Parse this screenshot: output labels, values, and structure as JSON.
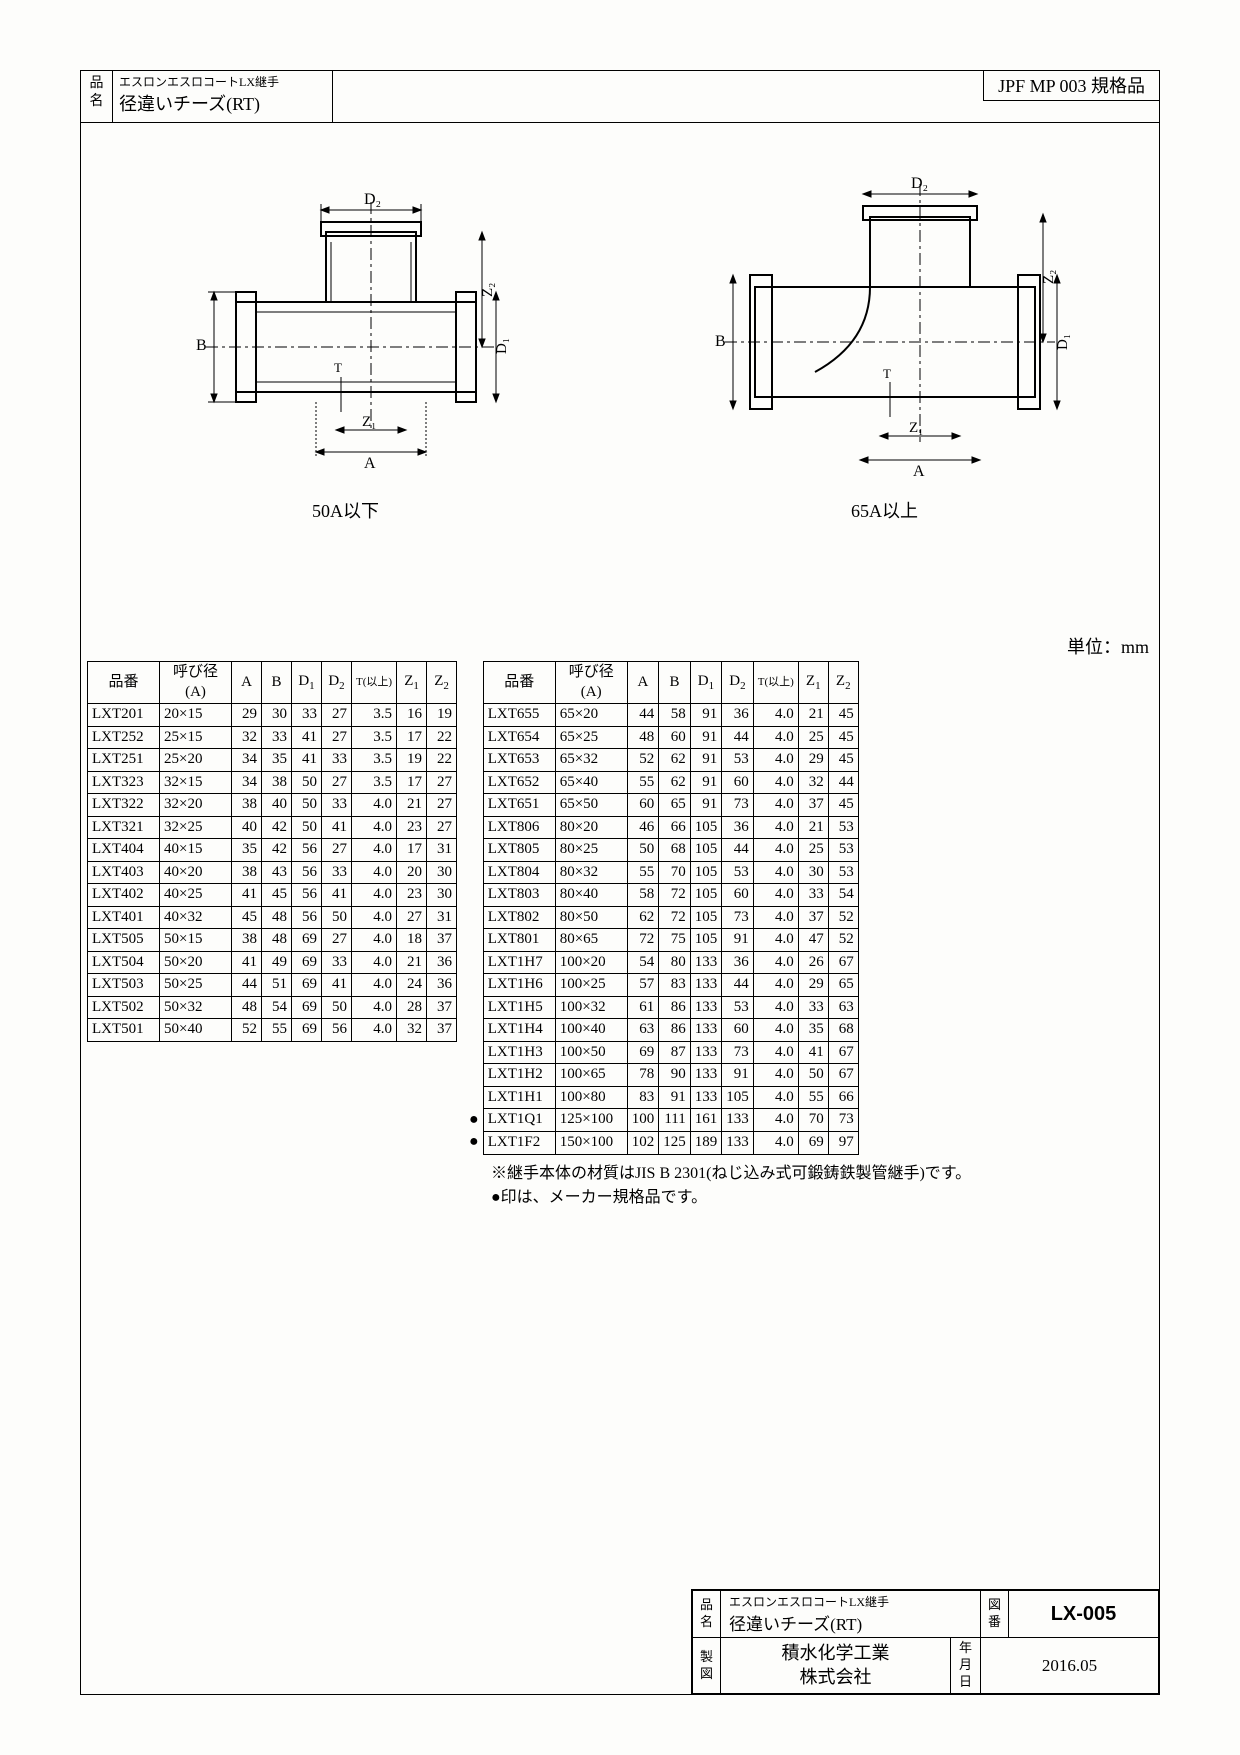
{
  "header": {
    "name_label_1": "品",
    "name_label_2": "名",
    "series": "エスロンエスロコートLX継手",
    "product_name": "径違いチーズ(RT)",
    "spec": "JPF MP 003 規格品"
  },
  "diagram": {
    "left_caption": "50A以下",
    "right_caption": "65A以上",
    "dim_A": "A",
    "dim_B": "B",
    "dim_D1": "D₁",
    "dim_D2": "D₂",
    "dim_Z1": "Z₁",
    "dim_Z2": "Z₂",
    "dim_T": "T"
  },
  "unit_label": "単位：mm",
  "table_headers": {
    "part": "品番",
    "nominal": "呼び径\n(A)",
    "A": "A",
    "B": "B",
    "D1": "D",
    "D1s": "1",
    "D2": "D",
    "D2s": "2",
    "T": "T(以上)",
    "Z1": "Z",
    "Z1s": "1",
    "Z2": "Z",
    "Z2s": "2"
  },
  "left_rows": [
    [
      "LXT201",
      "20×15",
      "29",
      "30",
      "33",
      "27",
      "3.5",
      "16",
      "19"
    ],
    [
      "LXT252",
      "25×15",
      "32",
      "33",
      "41",
      "27",
      "3.5",
      "17",
      "22"
    ],
    [
      "LXT251",
      "25×20",
      "34",
      "35",
      "41",
      "33",
      "3.5",
      "19",
      "22"
    ],
    [
      "LXT323",
      "32×15",
      "34",
      "38",
      "50",
      "27",
      "3.5",
      "17",
      "27"
    ],
    [
      "LXT322",
      "32×20",
      "38",
      "40",
      "50",
      "33",
      "4.0",
      "21",
      "27"
    ],
    [
      "LXT321",
      "32×25",
      "40",
      "42",
      "50",
      "41",
      "4.0",
      "23",
      "27"
    ],
    [
      "LXT404",
      "40×15",
      "35",
      "42",
      "56",
      "27",
      "4.0",
      "17",
      "31"
    ],
    [
      "LXT403",
      "40×20",
      "38",
      "43",
      "56",
      "33",
      "4.0",
      "20",
      "30"
    ],
    [
      "LXT402",
      "40×25",
      "41",
      "45",
      "56",
      "41",
      "4.0",
      "23",
      "30"
    ],
    [
      "LXT401",
      "40×32",
      "45",
      "48",
      "56",
      "50",
      "4.0",
      "27",
      "31"
    ],
    [
      "LXT505",
      "50×15",
      "38",
      "48",
      "69",
      "27",
      "4.0",
      "18",
      "37"
    ],
    [
      "LXT504",
      "50×20",
      "41",
      "49",
      "69",
      "33",
      "4.0",
      "21",
      "36"
    ],
    [
      "LXT503",
      "50×25",
      "44",
      "51",
      "69",
      "41",
      "4.0",
      "24",
      "36"
    ],
    [
      "LXT502",
      "50×32",
      "48",
      "54",
      "69",
      "50",
      "4.0",
      "28",
      "37"
    ],
    [
      "LXT501",
      "50×40",
      "52",
      "55",
      "69",
      "56",
      "4.0",
      "32",
      "37"
    ]
  ],
  "right_rows": [
    [
      "",
      "LXT655",
      "65×20",
      "44",
      "58",
      "91",
      "36",
      "4.0",
      "21",
      "45"
    ],
    [
      "",
      "LXT654",
      "65×25",
      "48",
      "60",
      "91",
      "44",
      "4.0",
      "25",
      "45"
    ],
    [
      "",
      "LXT653",
      "65×32",
      "52",
      "62",
      "91",
      "53",
      "4.0",
      "29",
      "45"
    ],
    [
      "",
      "LXT652",
      "65×40",
      "55",
      "62",
      "91",
      "60",
      "4.0",
      "32",
      "44"
    ],
    [
      "",
      "LXT651",
      "65×50",
      "60",
      "65",
      "91",
      "73",
      "4.0",
      "37",
      "45"
    ],
    [
      "",
      "LXT806",
      "80×20",
      "46",
      "66",
      "105",
      "36",
      "4.0",
      "21",
      "53"
    ],
    [
      "",
      "LXT805",
      "80×25",
      "50",
      "68",
      "105",
      "44",
      "4.0",
      "25",
      "53"
    ],
    [
      "",
      "LXT804",
      "80×32",
      "55",
      "70",
      "105",
      "53",
      "4.0",
      "30",
      "53"
    ],
    [
      "",
      "LXT803",
      "80×40",
      "58",
      "72",
      "105",
      "60",
      "4.0",
      "33",
      "54"
    ],
    [
      "",
      "LXT802",
      "80×50",
      "62",
      "72",
      "105",
      "73",
      "4.0",
      "37",
      "52"
    ],
    [
      "",
      "LXT801",
      "80×65",
      "72",
      "75",
      "105",
      "91",
      "4.0",
      "47",
      "52"
    ],
    [
      "",
      "LXT1H7",
      "100×20",
      "54",
      "80",
      "133",
      "36",
      "4.0",
      "26",
      "67"
    ],
    [
      "",
      "LXT1H6",
      "100×25",
      "57",
      "83",
      "133",
      "44",
      "4.0",
      "29",
      "65"
    ],
    [
      "",
      "LXT1H5",
      "100×32",
      "61",
      "86",
      "133",
      "53",
      "4.0",
      "33",
      "63"
    ],
    [
      "",
      "LXT1H4",
      "100×40",
      "63",
      "86",
      "133",
      "60",
      "4.0",
      "35",
      "68"
    ],
    [
      "",
      "LXT1H3",
      "100×50",
      "69",
      "87",
      "133",
      "73",
      "4.0",
      "41",
      "67"
    ],
    [
      "",
      "LXT1H2",
      "100×65",
      "78",
      "90",
      "133",
      "91",
      "4.0",
      "50",
      "67"
    ],
    [
      "",
      "LXT1H1",
      "100×80",
      "83",
      "91",
      "133",
      "105",
      "4.0",
      "55",
      "66"
    ],
    [
      "●",
      "LXT1Q1",
      "125×100",
      "100",
      "111",
      "161",
      "133",
      "4.0",
      "70",
      "73"
    ],
    [
      "●",
      "LXT1F2",
      "150×100",
      "102",
      "125",
      "189",
      "133",
      "4.0",
      "69",
      "97"
    ]
  ],
  "notes": {
    "line1": "※継手本体の材質はJIS B 2301(ねじ込み式可鍛鋳鉄製管継手)です。",
    "line2": "●印は、メーカー規格品です。"
  },
  "title_block": {
    "name_label": "品\n名",
    "series": "エスロンエスロコートLX継手",
    "product_name": "径違いチーズ(RT)",
    "dwg_label": "図\n番",
    "dwg_no": "LX-005",
    "drawn_label": "製\n図",
    "company": "積水化学工業\n株式会社",
    "date_label": "年\n月\n日",
    "date": "2016.05"
  }
}
